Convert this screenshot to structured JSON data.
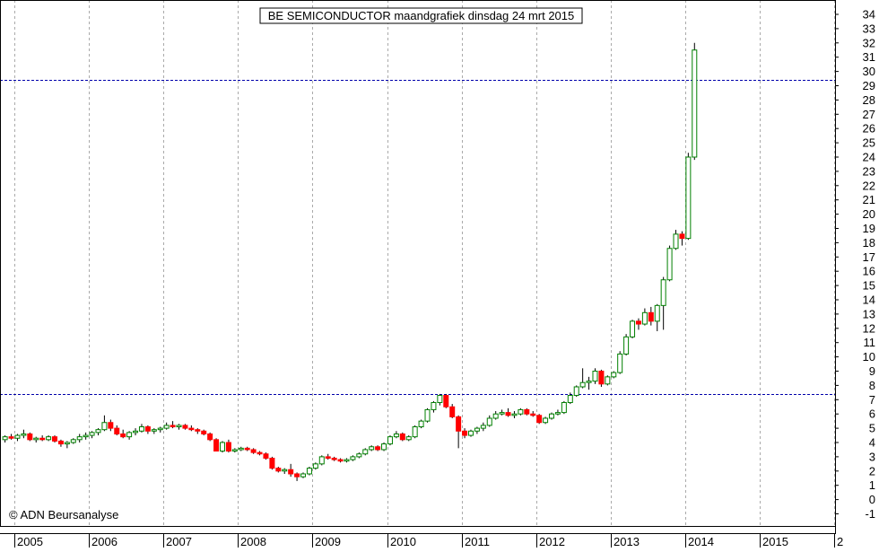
{
  "chart_data": {
    "type": "candlestick",
    "title": "BE SEMICONDUCTOR maandgrafiek dinsdag 24 mrt 2015",
    "watermark": "© ADN Beursanalyse",
    "x_axis": {
      "start": 2004.8,
      "end": 2016.0,
      "tick_labels": [
        "2005",
        "2006",
        "2007",
        "2008",
        "2009",
        "2010",
        "2011",
        "2012",
        "2013",
        "2014",
        "2015",
        "2"
      ]
    },
    "y_axis": {
      "min": -1,
      "max": 34,
      "side": "right",
      "tick_labels": [
        "34",
        "33",
        "32",
        "31",
        "30",
        "29",
        "28",
        "27",
        "26",
        "25",
        "24",
        "23",
        "22",
        "21",
        "20",
        "19",
        "18",
        "17",
        "16",
        "15",
        "14",
        "13",
        "12",
        "11",
        "10",
        "9",
        "8",
        "7",
        "6",
        "5",
        "4",
        "3",
        "2",
        "1",
        "0",
        "-1"
      ]
    },
    "grid": true,
    "horizontal_lines": [
      29.4,
      7.4
    ],
    "colors": {
      "up": "#008000",
      "down": "#ff0000",
      "wick": "#000000",
      "grid": "#aaaaaa",
      "reference_line": "#0000aa",
      "background": "#ffffff"
    },
    "series_start": "2004-11",
    "candles": [
      [
        4.2,
        4.5,
        4.0,
        4.4
      ],
      [
        4.4,
        4.6,
        4.2,
        4.3
      ],
      [
        4.3,
        4.6,
        4.1,
        4.5
      ],
      [
        4.5,
        4.9,
        4.3,
        4.6
      ],
      [
        4.6,
        4.7,
        4.1,
        4.2
      ],
      [
        4.2,
        4.4,
        4.0,
        4.3
      ],
      [
        4.3,
        4.5,
        4.1,
        4.2
      ],
      [
        4.2,
        4.5,
        4.1,
        4.4
      ],
      [
        4.4,
        4.5,
        4.0,
        4.1
      ],
      [
        4.1,
        4.2,
        3.7,
        3.9
      ],
      [
        3.9,
        4.1,
        3.6,
        4.0
      ],
      [
        4.0,
        4.3,
        3.9,
        4.2
      ],
      [
        4.2,
        4.6,
        4.0,
        4.4
      ],
      [
        4.4,
        4.7,
        4.2,
        4.5
      ],
      [
        4.5,
        4.8,
        4.3,
        4.7
      ],
      [
        4.7,
        5.0,
        4.5,
        4.9
      ],
      [
        4.9,
        5.9,
        4.8,
        5.4
      ],
      [
        5.4,
        5.6,
        4.8,
        5.0
      ],
      [
        5.0,
        5.2,
        4.5,
        4.6
      ],
      [
        4.6,
        4.9,
        4.3,
        4.4
      ],
      [
        4.4,
        4.8,
        4.2,
        4.7
      ],
      [
        4.7,
        5.0,
        4.5,
        4.8
      ],
      [
        4.8,
        5.3,
        4.7,
        5.1
      ],
      [
        5.1,
        5.2,
        4.6,
        4.8
      ],
      [
        4.8,
        5.0,
        4.6,
        4.9
      ],
      [
        4.9,
        5.1,
        4.7,
        5.0
      ],
      [
        5.0,
        5.4,
        4.9,
        5.2
      ],
      [
        5.2,
        5.5,
        5.0,
        5.1
      ],
      [
        5.1,
        5.3,
        4.9,
        5.2
      ],
      [
        5.2,
        5.3,
        4.9,
        5.0
      ],
      [
        5.0,
        5.2,
        4.8,
        4.9
      ],
      [
        4.9,
        5.0,
        4.6,
        4.8
      ],
      [
        4.8,
        4.9,
        4.5,
        4.6
      ],
      [
        4.6,
        4.7,
        4.1,
        4.2
      ],
      [
        4.2,
        4.3,
        3.4,
        3.4
      ],
      [
        3.4,
        4.1,
        3.3,
        4.0
      ],
      [
        4.0,
        4.2,
        3.3,
        3.4
      ],
      [
        3.4,
        3.6,
        3.3,
        3.5
      ],
      [
        3.5,
        3.7,
        3.4,
        3.6
      ],
      [
        3.6,
        3.7,
        3.4,
        3.5
      ],
      [
        3.5,
        3.6,
        3.2,
        3.3
      ],
      [
        3.3,
        3.4,
        3.1,
        3.2
      ],
      [
        3.2,
        3.3,
        2.8,
        2.9
      ],
      [
        2.9,
        3.0,
        2.1,
        2.2
      ],
      [
        2.2,
        2.3,
        1.9,
        2.0
      ],
      [
        2.0,
        2.2,
        1.8,
        2.1
      ],
      [
        2.1,
        2.5,
        1.6,
        1.8
      ],
      [
        1.8,
        1.9,
        1.3,
        1.6
      ],
      [
        1.6,
        1.9,
        1.5,
        1.8
      ],
      [
        1.8,
        2.3,
        1.7,
        2.2
      ],
      [
        2.2,
        2.6,
        2.1,
        2.5
      ],
      [
        2.5,
        3.1,
        2.4,
        3.0
      ],
      [
        3.0,
        3.2,
        2.8,
        2.9
      ],
      [
        2.9,
        3.0,
        2.7,
        2.8
      ],
      [
        2.8,
        2.9,
        2.6,
        2.7
      ],
      [
        2.7,
        2.9,
        2.6,
        2.8
      ],
      [
        2.8,
        3.1,
        2.7,
        3.0
      ],
      [
        3.0,
        3.3,
        2.9,
        3.2
      ],
      [
        3.2,
        3.6,
        3.1,
        3.5
      ],
      [
        3.5,
        3.8,
        3.4,
        3.7
      ],
      [
        3.7,
        3.8,
        3.4,
        3.5
      ],
      [
        3.5,
        4.0,
        3.4,
        3.9
      ],
      [
        3.9,
        4.5,
        3.8,
        4.4
      ],
      [
        4.4,
        4.8,
        4.3,
        4.6
      ],
      [
        4.6,
        4.7,
        4.1,
        4.2
      ],
      [
        4.2,
        4.5,
        4.1,
        4.4
      ],
      [
        4.4,
        5.2,
        4.3,
        5.1
      ],
      [
        5.1,
        5.6,
        5.0,
        5.5
      ],
      [
        5.5,
        6.4,
        5.4,
        6.3
      ],
      [
        6.3,
        6.9,
        6.1,
        6.8
      ],
      [
        6.8,
        7.4,
        6.6,
        7.3
      ],
      [
        7.3,
        7.4,
        6.4,
        6.5
      ],
      [
        6.5,
        6.7,
        5.7,
        5.8
      ],
      [
        5.8,
        5.9,
        3.6,
        4.8
      ],
      [
        4.8,
        5.0,
        4.3,
        4.5
      ],
      [
        4.5,
        4.9,
        4.4,
        4.8
      ],
      [
        4.8,
        5.1,
        4.6,
        5.0
      ],
      [
        5.0,
        5.4,
        4.8,
        5.2
      ],
      [
        5.2,
        5.9,
        5.1,
        5.7
      ],
      [
        5.7,
        6.2,
        5.6,
        6.0
      ],
      [
        6.0,
        6.3,
        5.9,
        6.1
      ],
      [
        6.1,
        6.4,
        5.8,
        5.9
      ],
      [
        5.9,
        6.2,
        5.7,
        6.0
      ],
      [
        6.0,
        6.4,
        5.9,
        6.3
      ],
      [
        6.3,
        6.4,
        5.9,
        6.0
      ],
      [
        6.0,
        6.2,
        5.8,
        5.9
      ],
      [
        5.9,
        6.0,
        5.3,
        5.4
      ],
      [
        5.4,
        5.8,
        5.3,
        5.7
      ],
      [
        5.7,
        6.1,
        5.6,
        6.0
      ],
      [
        6.0,
        6.3,
        5.9,
        6.1
      ],
      [
        6.1,
        6.9,
        6.0,
        6.8
      ],
      [
        6.8,
        7.5,
        6.7,
        7.3
      ],
      [
        7.3,
        8.0,
        7.2,
        7.9
      ],
      [
        7.9,
        9.2,
        7.8,
        8.2
      ],
      [
        8.2,
        8.6,
        7.7,
        8.3
      ],
      [
        8.3,
        9.2,
        8.1,
        9.0
      ],
      [
        9.0,
        9.1,
        7.9,
        8.1
      ],
      [
        8.1,
        8.7,
        8.0,
        8.6
      ],
      [
        8.6,
        9.0,
        8.5,
        8.9
      ],
      [
        8.9,
        10.4,
        8.8,
        10.2
      ],
      [
        10.2,
        11.6,
        10.1,
        11.4
      ],
      [
        11.4,
        12.6,
        11.3,
        12.5
      ],
      [
        12.5,
        12.7,
        11.9,
        12.3
      ],
      [
        12.3,
        13.4,
        12.2,
        13.1
      ],
      [
        13.1,
        13.5,
        12.2,
        12.5
      ],
      [
        12.5,
        13.7,
        11.8,
        13.6
      ],
      [
        13.6,
        15.6,
        11.9,
        15.4
      ],
      [
        15.4,
        17.8,
        15.3,
        17.6
      ],
      [
        17.6,
        18.9,
        17.5,
        18.6
      ],
      [
        18.6,
        18.8,
        17.8,
        18.3
      ],
      [
        18.3,
        24.3,
        18.2,
        24.0
      ],
      [
        24.0,
        32.0,
        23.8,
        31.5
      ]
    ]
  }
}
